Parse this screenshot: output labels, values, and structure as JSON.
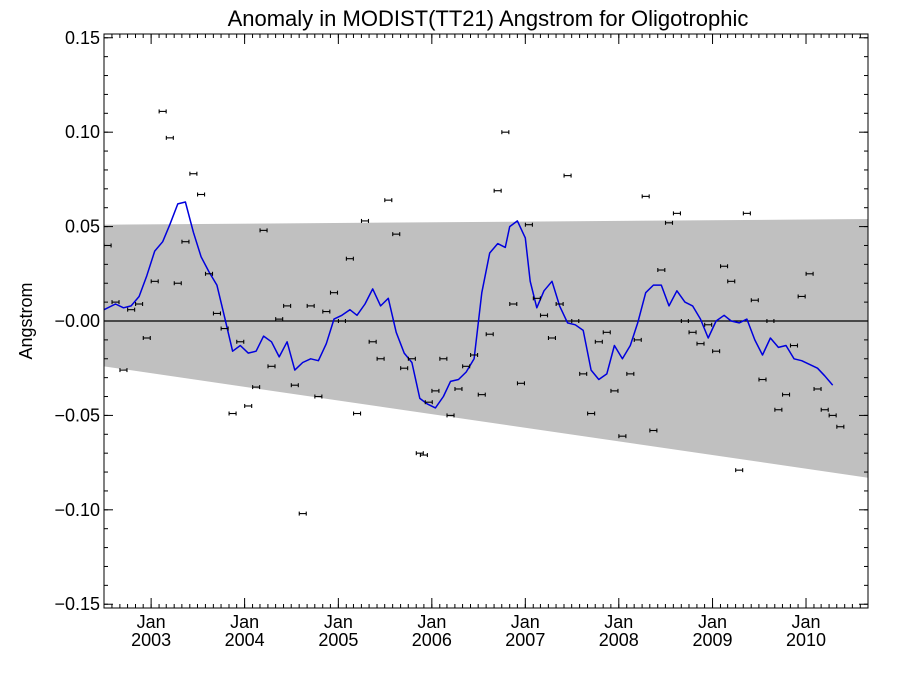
{
  "chart_data": {
    "type": "scatter",
    "title": "Anomaly in MODIST(TT21) Angstrom for Oligotrophic",
    "ylabel": "Angstrom",
    "xlabel": "",
    "xlim": [
      "2002-07-01",
      "2010-08-31"
    ],
    "ylim": [
      -0.152,
      0.152
    ],
    "y_ticks": [
      -0.15,
      -0.1,
      -0.05,
      0.0,
      0.05,
      0.1,
      0.15
    ],
    "y_tick_labels": [
      "−0.15",
      "−0.10",
      "−0.05",
      "−0.00",
      "0.05",
      "0.10",
      "0.15"
    ],
    "x_ticks": [
      {
        "date": "2003-01-01",
        "label_top": "Jan",
        "label_bottom": "2003"
      },
      {
        "date": "2004-01-01",
        "label_top": "Jan",
        "label_bottom": "2004"
      },
      {
        "date": "2005-01-01",
        "label_top": "Jan",
        "label_bottom": "2005"
      },
      {
        "date": "2006-01-01",
        "label_top": "Jan",
        "label_bottom": "2006"
      },
      {
        "date": "2007-01-01",
        "label_top": "Jan",
        "label_bottom": "2007"
      },
      {
        "date": "2008-01-01",
        "label_top": "Jan",
        "label_bottom": "2008"
      },
      {
        "date": "2009-01-01",
        "label_top": "Jan",
        "label_bottom": "2009"
      },
      {
        "date": "2010-01-01",
        "label_top": "Jan",
        "label_bottom": "2010"
      }
    ],
    "confidence_band": {
      "start": {
        "date": "2002-07-01",
        "upper": 0.051,
        "lower": -0.024
      },
      "end": {
        "date": "2010-08-31",
        "upper": 0.054,
        "lower": -0.083
      }
    },
    "zero_line": 0.0,
    "colors": {
      "band": "#c0c0c0",
      "smooth": "#0000dd",
      "points": "#000000",
      "zero": "#000000"
    },
    "monthly_anomalies": [
      {
        "date": "2002-07-15",
        "y": 0.04
      },
      {
        "date": "2002-08-15",
        "y": 0.01
      },
      {
        "date": "2002-09-15",
        "y": -0.026
      },
      {
        "date": "2002-10-15",
        "y": 0.006
      },
      {
        "date": "2002-11-15",
        "y": 0.009
      },
      {
        "date": "2002-12-15",
        "y": -0.009
      },
      {
        "date": "2003-01-15",
        "y": 0.021
      },
      {
        "date": "2003-02-15",
        "y": 0.111
      },
      {
        "date": "2003-03-15",
        "y": 0.097
      },
      {
        "date": "2003-04-15",
        "y": 0.02
      },
      {
        "date": "2003-05-15",
        "y": 0.042
      },
      {
        "date": "2003-06-15",
        "y": 0.078
      },
      {
        "date": "2003-07-15",
        "y": 0.067
      },
      {
        "date": "2003-08-15",
        "y": 0.025
      },
      {
        "date": "2003-09-15",
        "y": 0.004
      },
      {
        "date": "2003-10-15",
        "y": -0.004
      },
      {
        "date": "2003-11-15",
        "y": -0.049
      },
      {
        "date": "2003-12-15",
        "y": -0.011
      },
      {
        "date": "2004-01-15",
        "y": -0.045
      },
      {
        "date": "2004-02-15",
        "y": -0.035
      },
      {
        "date": "2004-03-15",
        "y": 0.048
      },
      {
        "date": "2004-04-15",
        "y": -0.024
      },
      {
        "date": "2004-05-15",
        "y": 0.001
      },
      {
        "date": "2004-06-15",
        "y": 0.008
      },
      {
        "date": "2004-07-15",
        "y": -0.034
      },
      {
        "date": "2004-08-15",
        "y": -0.102
      },
      {
        "date": "2004-09-15",
        "y": 0.008
      },
      {
        "date": "2004-10-15",
        "y": -0.04
      },
      {
        "date": "2004-11-15",
        "y": 0.005
      },
      {
        "date": "2004-12-15",
        "y": 0.015
      },
      {
        "date": "2005-01-15",
        "y": 0.0
      },
      {
        "date": "2005-02-15",
        "y": 0.033
      },
      {
        "date": "2005-03-15",
        "y": -0.049
      },
      {
        "date": "2005-04-15",
        "y": 0.053
      },
      {
        "date": "2005-05-15",
        "y": -0.011
      },
      {
        "date": "2005-06-15",
        "y": -0.02
      },
      {
        "date": "2005-07-15",
        "y": 0.064
      },
      {
        "date": "2005-08-15",
        "y": 0.046
      },
      {
        "date": "2005-09-15",
        "y": -0.025
      },
      {
        "date": "2005-10-15",
        "y": -0.02
      },
      {
        "date": "2005-11-15",
        "y": -0.07
      },
      {
        "date": "2005-12-01",
        "y": -0.071
      },
      {
        "date": "2005-12-20",
        "y": -0.043
      },
      {
        "date": "2006-01-15",
        "y": -0.037
      },
      {
        "date": "2006-02-15",
        "y": -0.02
      },
      {
        "date": "2006-03-15",
        "y": -0.05
      },
      {
        "date": "2006-04-15",
        "y": -0.036
      },
      {
        "date": "2006-05-15",
        "y": -0.024
      },
      {
        "date": "2006-06-15",
        "y": -0.018
      },
      {
        "date": "2006-07-15",
        "y": -0.039
      },
      {
        "date": "2006-08-15",
        "y": -0.007
      },
      {
        "date": "2006-09-15",
        "y": 0.069
      },
      {
        "date": "2006-10-15",
        "y": 0.1
      },
      {
        "date": "2006-11-15",
        "y": 0.009
      },
      {
        "date": "2006-12-15",
        "y": -0.033
      },
      {
        "date": "2007-01-15",
        "y": 0.051
      },
      {
        "date": "2007-02-15",
        "y": 0.012
      },
      {
        "date": "2007-03-15",
        "y": 0.003
      },
      {
        "date": "2007-04-15",
        "y": -0.009
      },
      {
        "date": "2007-05-15",
        "y": 0.009
      },
      {
        "date": "2007-06-15",
        "y": 0.077
      },
      {
        "date": "2007-07-15",
        "y": 0.0
      },
      {
        "date": "2007-08-15",
        "y": -0.028
      },
      {
        "date": "2007-09-15",
        "y": -0.049
      },
      {
        "date": "2007-10-15",
        "y": -0.011
      },
      {
        "date": "2007-11-15",
        "y": -0.006
      },
      {
        "date": "2007-12-15",
        "y": -0.037
      },
      {
        "date": "2008-01-15",
        "y": -0.061
      },
      {
        "date": "2008-02-15",
        "y": -0.028
      },
      {
        "date": "2008-03-15",
        "y": -0.01
      },
      {
        "date": "2008-04-15",
        "y": 0.066
      },
      {
        "date": "2008-05-15",
        "y": -0.058
      },
      {
        "date": "2008-06-15",
        "y": 0.027
      },
      {
        "date": "2008-07-15",
        "y": 0.052
      },
      {
        "date": "2008-08-15",
        "y": 0.057
      },
      {
        "date": "2008-09-15",
        "y": 0.0
      },
      {
        "date": "2008-10-15",
        "y": -0.006
      },
      {
        "date": "2008-11-15",
        "y": -0.012
      },
      {
        "date": "2008-12-15",
        "y": -0.002
      },
      {
        "date": "2009-01-15",
        "y": -0.016
      },
      {
        "date": "2009-02-15",
        "y": 0.029
      },
      {
        "date": "2009-03-15",
        "y": 0.021
      },
      {
        "date": "2009-04-15",
        "y": -0.079
      },
      {
        "date": "2009-05-15",
        "y": 0.057
      },
      {
        "date": "2009-06-15",
        "y": 0.011
      },
      {
        "date": "2009-07-15",
        "y": -0.031
      },
      {
        "date": "2009-08-15",
        "y": 0.0
      },
      {
        "date": "2009-09-15",
        "y": -0.047
      },
      {
        "date": "2009-10-15",
        "y": -0.039
      },
      {
        "date": "2009-11-15",
        "y": -0.013
      },
      {
        "date": "2009-12-15",
        "y": 0.013
      },
      {
        "date": "2010-01-15",
        "y": 0.025
      },
      {
        "date": "2010-02-15",
        "y": -0.036
      },
      {
        "date": "2010-03-15",
        "y": -0.047
      },
      {
        "date": "2010-04-15",
        "y": -0.05
      },
      {
        "date": "2010-05-15",
        "y": -0.056
      }
    ],
    "smoothed_line": [
      {
        "date": "2002-07-01",
        "y": 0.006
      },
      {
        "date": "2002-08-15",
        "y": 0.009
      },
      {
        "date": "2002-09-15",
        "y": 0.007
      },
      {
        "date": "2002-10-15",
        "y": 0.008
      },
      {
        "date": "2002-11-15",
        "y": 0.013
      },
      {
        "date": "2002-12-15",
        "y": 0.024
      },
      {
        "date": "2003-01-15",
        "y": 0.037
      },
      {
        "date": "2003-02-15",
        "y": 0.042
      },
      {
        "date": "2003-03-15",
        "y": 0.051
      },
      {
        "date": "2003-04-15",
        "y": 0.062
      },
      {
        "date": "2003-05-15",
        "y": 0.063
      },
      {
        "date": "2003-06-15",
        "y": 0.047
      },
      {
        "date": "2003-07-15",
        "y": 0.034
      },
      {
        "date": "2003-08-15",
        "y": 0.026
      },
      {
        "date": "2003-09-15",
        "y": 0.019
      },
      {
        "date": "2003-10-15",
        "y": 0.002
      },
      {
        "date": "2003-11-15",
        "y": -0.016
      },
      {
        "date": "2003-12-15",
        "y": -0.013
      },
      {
        "date": "2004-01-15",
        "y": -0.017
      },
      {
        "date": "2004-02-15",
        "y": -0.016
      },
      {
        "date": "2004-03-15",
        "y": -0.008
      },
      {
        "date": "2004-04-15",
        "y": -0.011
      },
      {
        "date": "2004-05-15",
        "y": -0.019
      },
      {
        "date": "2004-06-15",
        "y": -0.011
      },
      {
        "date": "2004-07-15",
        "y": -0.026
      },
      {
        "date": "2004-08-15",
        "y": -0.022
      },
      {
        "date": "2004-09-15",
        "y": -0.02
      },
      {
        "date": "2004-10-15",
        "y": -0.021
      },
      {
        "date": "2004-11-15",
        "y": -0.012
      },
      {
        "date": "2004-12-15",
        "y": 0.001
      },
      {
        "date": "2005-01-15",
        "y": 0.003
      },
      {
        "date": "2005-02-15",
        "y": 0.006
      },
      {
        "date": "2005-03-15",
        "y": 0.003
      },
      {
        "date": "2005-04-15",
        "y": 0.009
      },
      {
        "date": "2005-05-15",
        "y": 0.017
      },
      {
        "date": "2005-06-15",
        "y": 0.008
      },
      {
        "date": "2005-07-15",
        "y": 0.012
      },
      {
        "date": "2005-08-15",
        "y": -0.006
      },
      {
        "date": "2005-09-15",
        "y": -0.017
      },
      {
        "date": "2005-10-15",
        "y": -0.022
      },
      {
        "date": "2005-11-15",
        "y": -0.041
      },
      {
        "date": "2005-12-15",
        "y": -0.044
      },
      {
        "date": "2006-01-15",
        "y": -0.046
      },
      {
        "date": "2006-02-15",
        "y": -0.04
      },
      {
        "date": "2006-03-15",
        "y": -0.032
      },
      {
        "date": "2006-04-15",
        "y": -0.031
      },
      {
        "date": "2006-05-15",
        "y": -0.027
      },
      {
        "date": "2006-06-15",
        "y": -0.02
      },
      {
        "date": "2006-07-15",
        "y": 0.015
      },
      {
        "date": "2006-08-15",
        "y": 0.036
      },
      {
        "date": "2006-09-15",
        "y": 0.041
      },
      {
        "date": "2006-10-15",
        "y": 0.039
      },
      {
        "date": "2006-11-01",
        "y": 0.05
      },
      {
        "date": "2006-12-01",
        "y": 0.053
      },
      {
        "date": "2007-01-01",
        "y": 0.044
      },
      {
        "date": "2007-01-20",
        "y": 0.021
      },
      {
        "date": "2007-02-15",
        "y": 0.007
      },
      {
        "date": "2007-03-15",
        "y": 0.016
      },
      {
        "date": "2007-04-15",
        "y": 0.021
      },
      {
        "date": "2007-05-15",
        "y": 0.008
      },
      {
        "date": "2007-06-15",
        "y": -0.001
      },
      {
        "date": "2007-07-15",
        "y": -0.002
      },
      {
        "date": "2007-08-15",
        "y": -0.005
      },
      {
        "date": "2007-09-15",
        "y": -0.026
      },
      {
        "date": "2007-10-15",
        "y": -0.031
      },
      {
        "date": "2007-11-15",
        "y": -0.028
      },
      {
        "date": "2007-12-15",
        "y": -0.013
      },
      {
        "date": "2008-01-15",
        "y": -0.02
      },
      {
        "date": "2008-02-15",
        "y": -0.013
      },
      {
        "date": "2008-03-15",
        "y": -0.001
      },
      {
        "date": "2008-04-15",
        "y": 0.015
      },
      {
        "date": "2008-05-15",
        "y": 0.019
      },
      {
        "date": "2008-06-15",
        "y": 0.019
      },
      {
        "date": "2008-07-15",
        "y": 0.008
      },
      {
        "date": "2008-08-15",
        "y": 0.016
      },
      {
        "date": "2008-09-15",
        "y": 0.01
      },
      {
        "date": "2008-10-15",
        "y": 0.008
      },
      {
        "date": "2008-11-15",
        "y": 0.001
      },
      {
        "date": "2008-12-15",
        "y": -0.009
      },
      {
        "date": "2009-01-15",
        "y": 0.0
      },
      {
        "date": "2009-02-15",
        "y": 0.003
      },
      {
        "date": "2009-03-15",
        "y": 0.0
      },
      {
        "date": "2009-04-15",
        "y": -0.001
      },
      {
        "date": "2009-05-15",
        "y": 0.001
      },
      {
        "date": "2009-06-15",
        "y": -0.01
      },
      {
        "date": "2009-07-15",
        "y": -0.018
      },
      {
        "date": "2009-08-15",
        "y": -0.009
      },
      {
        "date": "2009-09-15",
        "y": -0.014
      },
      {
        "date": "2009-10-15",
        "y": -0.013
      },
      {
        "date": "2009-11-15",
        "y": -0.02
      },
      {
        "date": "2009-12-15",
        "y": -0.021
      },
      {
        "date": "2010-01-15",
        "y": -0.023
      },
      {
        "date": "2010-02-15",
        "y": -0.025
      },
      {
        "date": "2010-03-15",
        "y": -0.029
      },
      {
        "date": "2010-04-15",
        "y": -0.034
      }
    ]
  }
}
